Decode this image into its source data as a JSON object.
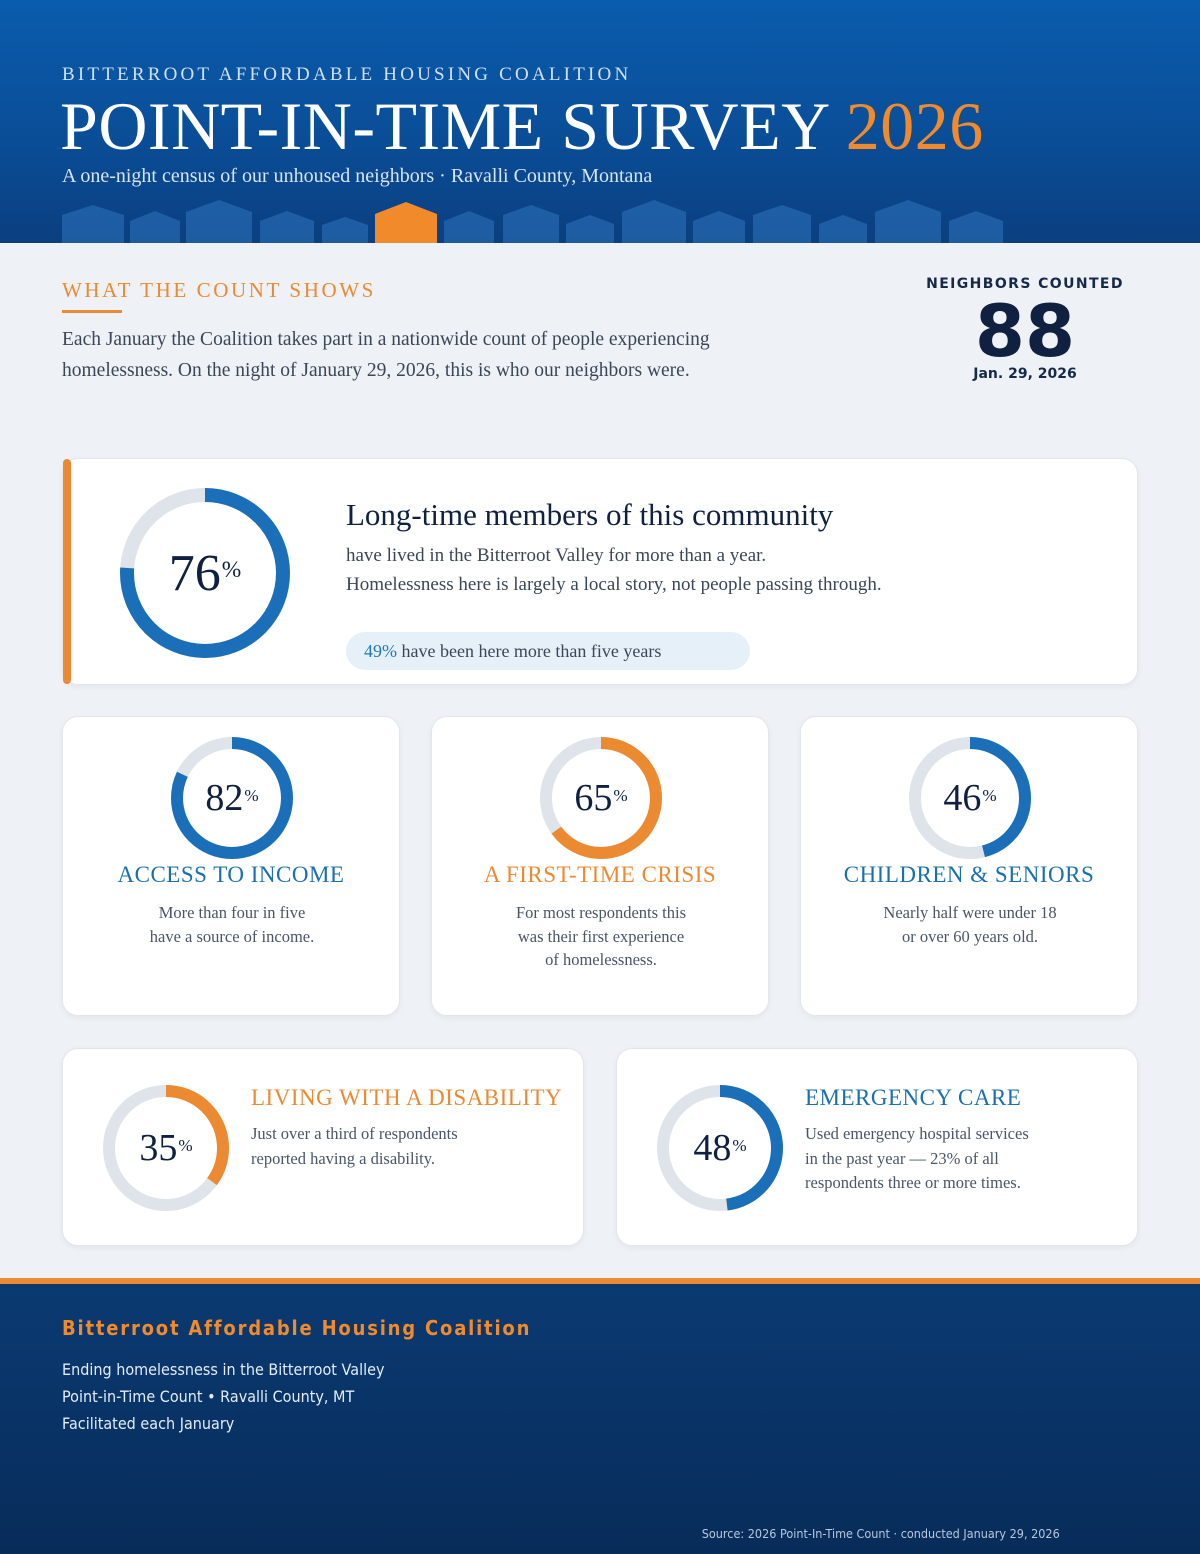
{
  "header": {
    "org": "BITTERROOT AFFORDABLE HOUSING COALITION",
    "title": "POINT-IN-TIME SURVEY",
    "year": "2026",
    "subtitle": "A one-night census of our unhoused neighbors · Ravalli County, Montana",
    "colors": {
      "background": "#0a4e98",
      "accent": "#f08a2a"
    }
  },
  "intro": {
    "label": "WHAT THE COUNT SHOWS",
    "text": "Each January the Coalition takes part in a nationwide count of people experiencing homelessness. On the night of January 29, 2026, this is who our neighbors were."
  },
  "counted": {
    "label": "NEIGHBORS COUNTED",
    "value": "88",
    "date": "Jan. 29, 2026"
  },
  "hero": {
    "percent": 76,
    "percent_text": "76",
    "percent_sign": "%",
    "title": "Long-time members of this community",
    "body_line1": "have lived in the Bitterroot Valley for more than a year.",
    "body_line2": "Homelessness here is largely a local story, not people passing through.",
    "pill_percent": "49%",
    "pill_text": " have been here more than five years",
    "color": "#1a6fb8"
  },
  "stats": [
    {
      "percent": 82,
      "percent_text": "82",
      "percent_sign": "%",
      "title": "ACCESS TO INCOME",
      "body": [
        "More than four in five",
        "have a source of income."
      ],
      "color": "#1a6fb8"
    },
    {
      "percent": 65,
      "percent_text": "65",
      "percent_sign": "%",
      "title": "A FIRST-TIME CRISIS",
      "body": [
        "For most respondents this",
        "was their first experience",
        "of homelessness."
      ],
      "color": "#ec8a32"
    },
    {
      "percent": 46,
      "percent_text": "46",
      "percent_sign": "%",
      "title": "CHILDREN & SENIORS",
      "body": [
        "Nearly half were under 18",
        "or over 60 years old."
      ],
      "color": "#1a6fb8"
    }
  ],
  "wide": [
    {
      "percent": 35,
      "percent_text": "35",
      "percent_sign": "%",
      "title": "LIVING WITH A DISABILITY",
      "body": [
        "Just over a third of respondents",
        "reported having a disability."
      ],
      "color": "#ec8a32"
    },
    {
      "percent": 48,
      "percent_text": "48",
      "percent_sign": "%",
      "title": "EMERGENCY CARE",
      "body": [
        "Used emergency hospital services",
        "in the past year — 23% of all",
        "respondents three or more times."
      ],
      "color": "#1a6fb8"
    }
  ],
  "footer": {
    "org": "Bitterroot Affordable Housing Coalition",
    "lines": [
      "Ending homelessness in the Bitterroot Valley",
      "Point-in-Time Count • Ravalli County, MT",
      "Facilitated each January"
    ],
    "source": "Source: 2026 Point-In-Time Count · conducted January 29, 2026"
  }
}
